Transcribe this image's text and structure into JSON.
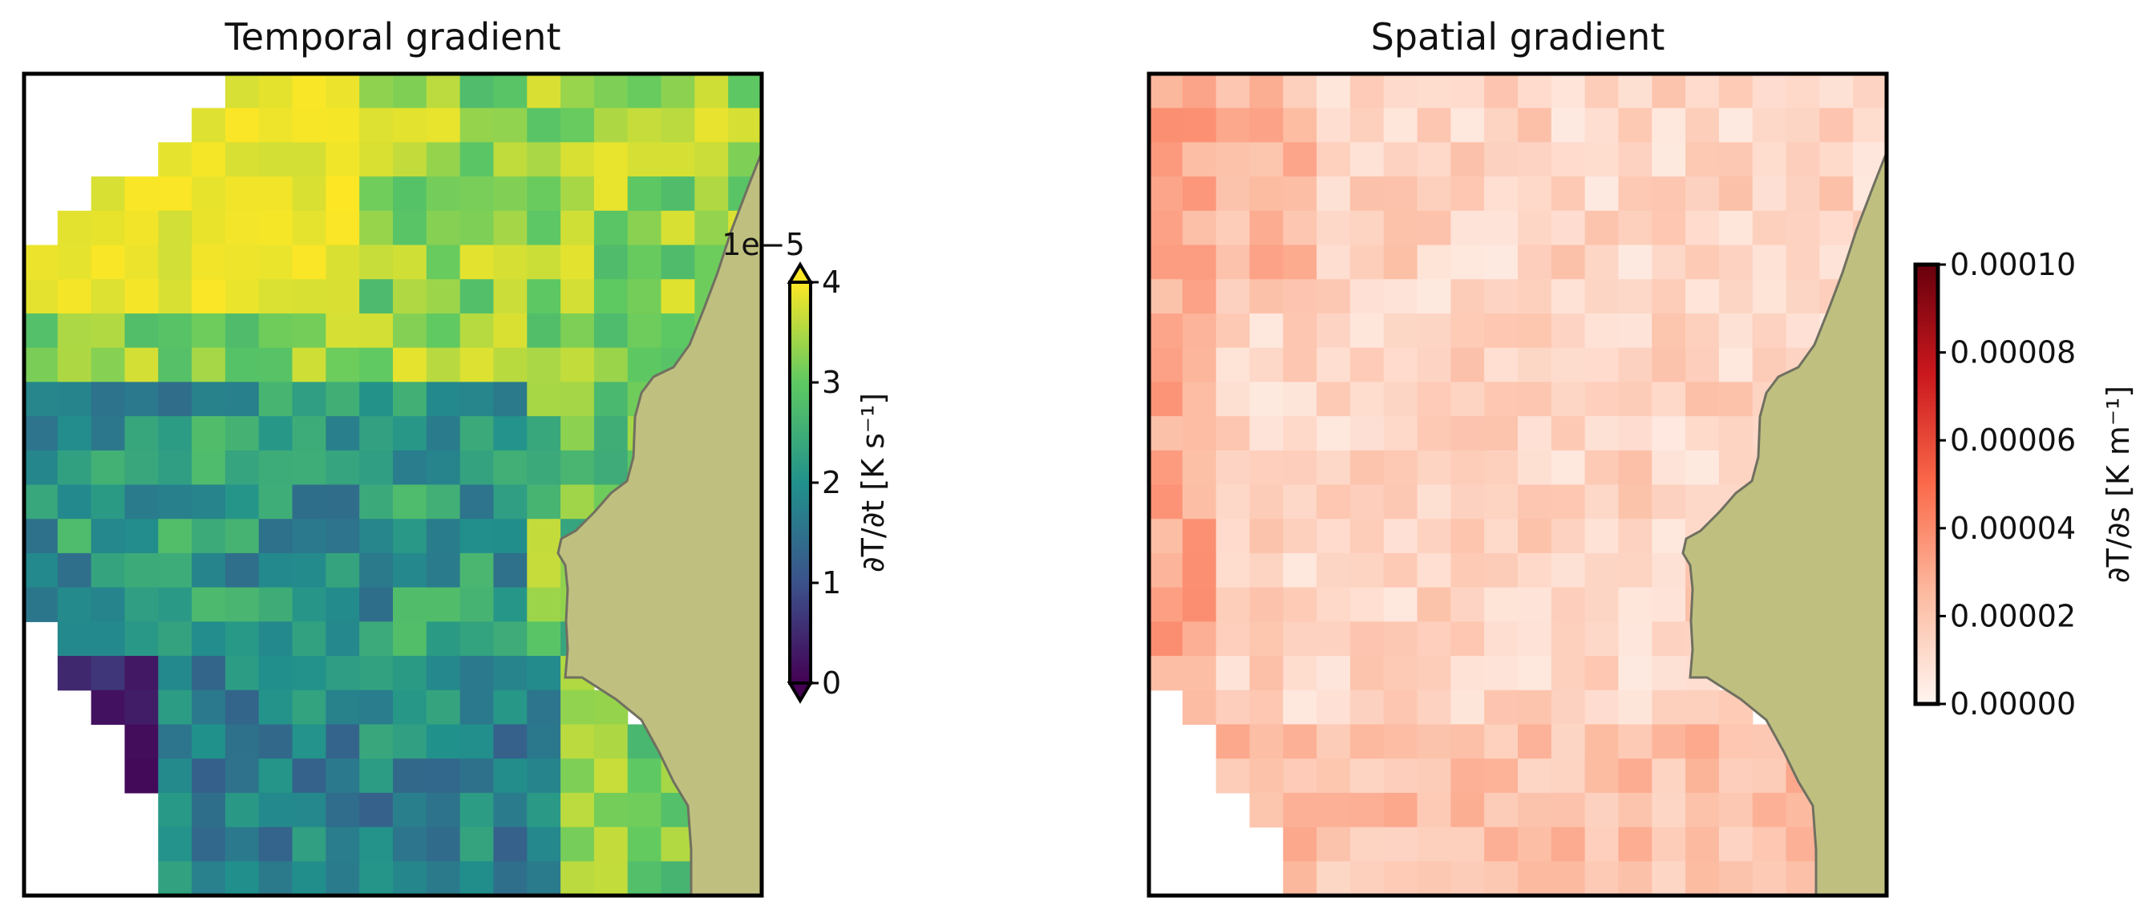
{
  "chart_data": [
    {
      "type": "heatmap",
      "title": "Temporal gradient",
      "colormap": "viridis",
      "colorbar": {
        "label": "∂T/∂t [K s⁻¹]",
        "offset_text": "1e−5",
        "ticks": [
          "0",
          "1",
          "2",
          "3",
          "4"
        ],
        "range": [
          0,
          4
        ],
        "extend": "both"
      },
      "grid_rows": 24,
      "grid_cols": 22,
      "value_units": "1e-5 K s^-1",
      "land_color": "#BFBF80"
    },
    {
      "type": "heatmap",
      "title": "Spatial gradient",
      "colormap": "Reds",
      "colorbar": {
        "label": "∂T/∂s [K m⁻¹]",
        "ticks": [
          "0.00000",
          "0.00002",
          "0.00004",
          "0.00006",
          "0.00008",
          "0.00010"
        ],
        "range": [
          0,
          0.0001
        ],
        "extend": "neither"
      },
      "grid_rows": 24,
      "grid_cols": 22,
      "value_units": "K m^-1",
      "land_color": "#BFBF80"
    }
  ]
}
